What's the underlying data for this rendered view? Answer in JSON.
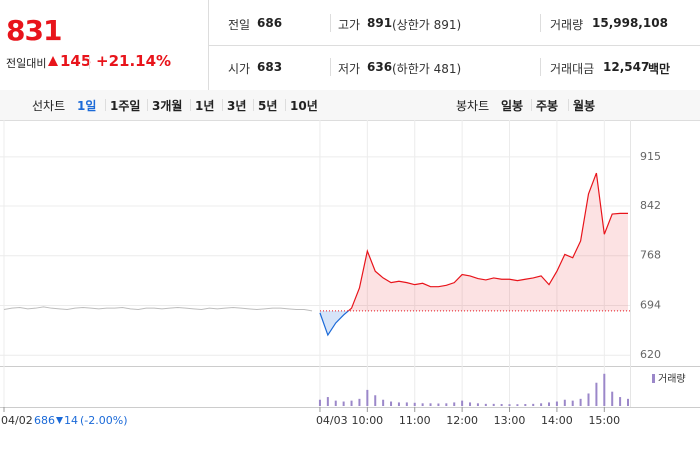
{
  "quote": {
    "price": 831,
    "change_label": "전일대비",
    "change": 145,
    "change_pct": "+21.14%"
  },
  "info": [
    {
      "label": "전일",
      "value": 686
    },
    {
      "label": "고가",
      "value": 891,
      "note": "(상한가 891)"
    },
    {
      "label": "거래량",
      "value": "15,998,108"
    },
    {
      "label": "시가",
      "value": 683
    },
    {
      "label": "저가",
      "value": 636,
      "note": "(하한가 481)"
    },
    {
      "label": "거래대금",
      "value": "12,547",
      "unit": "백만"
    }
  ],
  "tabs": {
    "line": {
      "label": "선차트",
      "items": [
        "1일",
        "1주일",
        "3개월",
        "1년",
        "3년",
        "5년",
        "10년"
      ]
    },
    "candle": {
      "label": "봉차트",
      "items": [
        "일봉",
        "주봉",
        "월봉"
      ]
    }
  },
  "footer": {
    "prev_close": 686,
    "change": 14,
    "change_pct": "(-2.00%)"
  },
  "chart_data": {
    "type": "line",
    "categories": [
      "04/02",
      null,
      null,
      null,
      null,
      null,
      null,
      null,
      null,
      null,
      null,
      null,
      null,
      null,
      null,
      null,
      null,
      null,
      null,
      null,
      null,
      null,
      null,
      null,
      null,
      null,
      null,
      null,
      null,
      null,
      null,
      null,
      null,
      null,
      null,
      null,
      null,
      null,
      null,
      null,
      "04/03",
      null,
      null,
      null,
      null,
      null,
      "10:00",
      null,
      null,
      null,
      null,
      null,
      "11:00",
      null,
      null,
      null,
      null,
      null,
      "12:00",
      null,
      null,
      null,
      null,
      null,
      "13:00",
      null,
      null,
      null,
      null,
      null,
      "14:00",
      null,
      null,
      null,
      null,
      null,
      "15:00",
      null,
      null,
      null
    ],
    "series": [
      {
        "color": "#bdbdbd",
        "values": [
          688,
          690,
          691,
          689,
          690,
          692,
          690,
          689,
          688,
          690,
          691,
          690,
          689,
          690,
          690,
          691,
          689,
          688,
          690,
          690,
          689,
          690,
          691,
          690,
          689,
          688,
          690,
          689,
          690,
          691,
          690,
          689,
          688,
          689,
          690,
          690,
          689,
          688,
          688,
          686,
          null,
          null,
          null,
          null,
          null,
          null,
          null,
          null,
          null,
          null,
          null,
          null,
          null,
          null,
          null,
          null,
          null,
          null,
          null,
          null,
          null,
          null,
          null,
          null,
          null,
          null,
          null,
          null,
          null,
          null,
          null,
          null,
          null,
          null,
          null,
          null,
          null,
          null,
          null,
          null
        ]
      },
      {
        "color": "#e8141b",
        "color_below": "#1b6ad8",
        "values": [
          null,
          null,
          null,
          null,
          null,
          null,
          null,
          null,
          null,
          null,
          null,
          null,
          null,
          null,
          null,
          null,
          null,
          null,
          null,
          null,
          null,
          null,
          null,
          null,
          null,
          null,
          null,
          null,
          null,
          null,
          null,
          null,
          null,
          null,
          null,
          null,
          null,
          null,
          null,
          null,
          683,
          650,
          668,
          680,
          690,
          720,
          775,
          745,
          735,
          728,
          730,
          728,
          725,
          727,
          722,
          722,
          724,
          728,
          740,
          738,
          734,
          732,
          735,
          733,
          733,
          731,
          733,
          735,
          738,
          725,
          745,
          770,
          765,
          790,
          860,
          891,
          800,
          830,
          831,
          831
        ]
      },
      {
        "name": "거래량",
        "axis": "y2",
        "color": "#9b87c9",
        "values": [
          null,
          null,
          null,
          null,
          null,
          null,
          null,
          null,
          null,
          null,
          null,
          null,
          null,
          null,
          null,
          null,
          null,
          null,
          null,
          null,
          null,
          null,
          null,
          null,
          null,
          null,
          null,
          null,
          null,
          null,
          null,
          null,
          null,
          null,
          null,
          null,
          null,
          null,
          null,
          null,
          350000,
          500000,
          300000,
          250000,
          300000,
          400000,
          900000,
          600000,
          350000,
          250000,
          200000,
          200000,
          180000,
          150000,
          150000,
          140000,
          150000,
          200000,
          300000,
          200000,
          150000,
          120000,
          120000,
          110000,
          100000,
          100000,
          110000,
          120000,
          150000,
          200000,
          250000,
          350000,
          300000,
          400000,
          700000,
          1300000,
          1800000,
          800000,
          500000,
          400000
        ]
      }
    ],
    "ylim": [
      604,
      958
    ],
    "yticks": [
      915,
      842,
      768,
      694,
      620
    ],
    "y2lim": [
      0,
      1900000
    ],
    "grid": true
  }
}
